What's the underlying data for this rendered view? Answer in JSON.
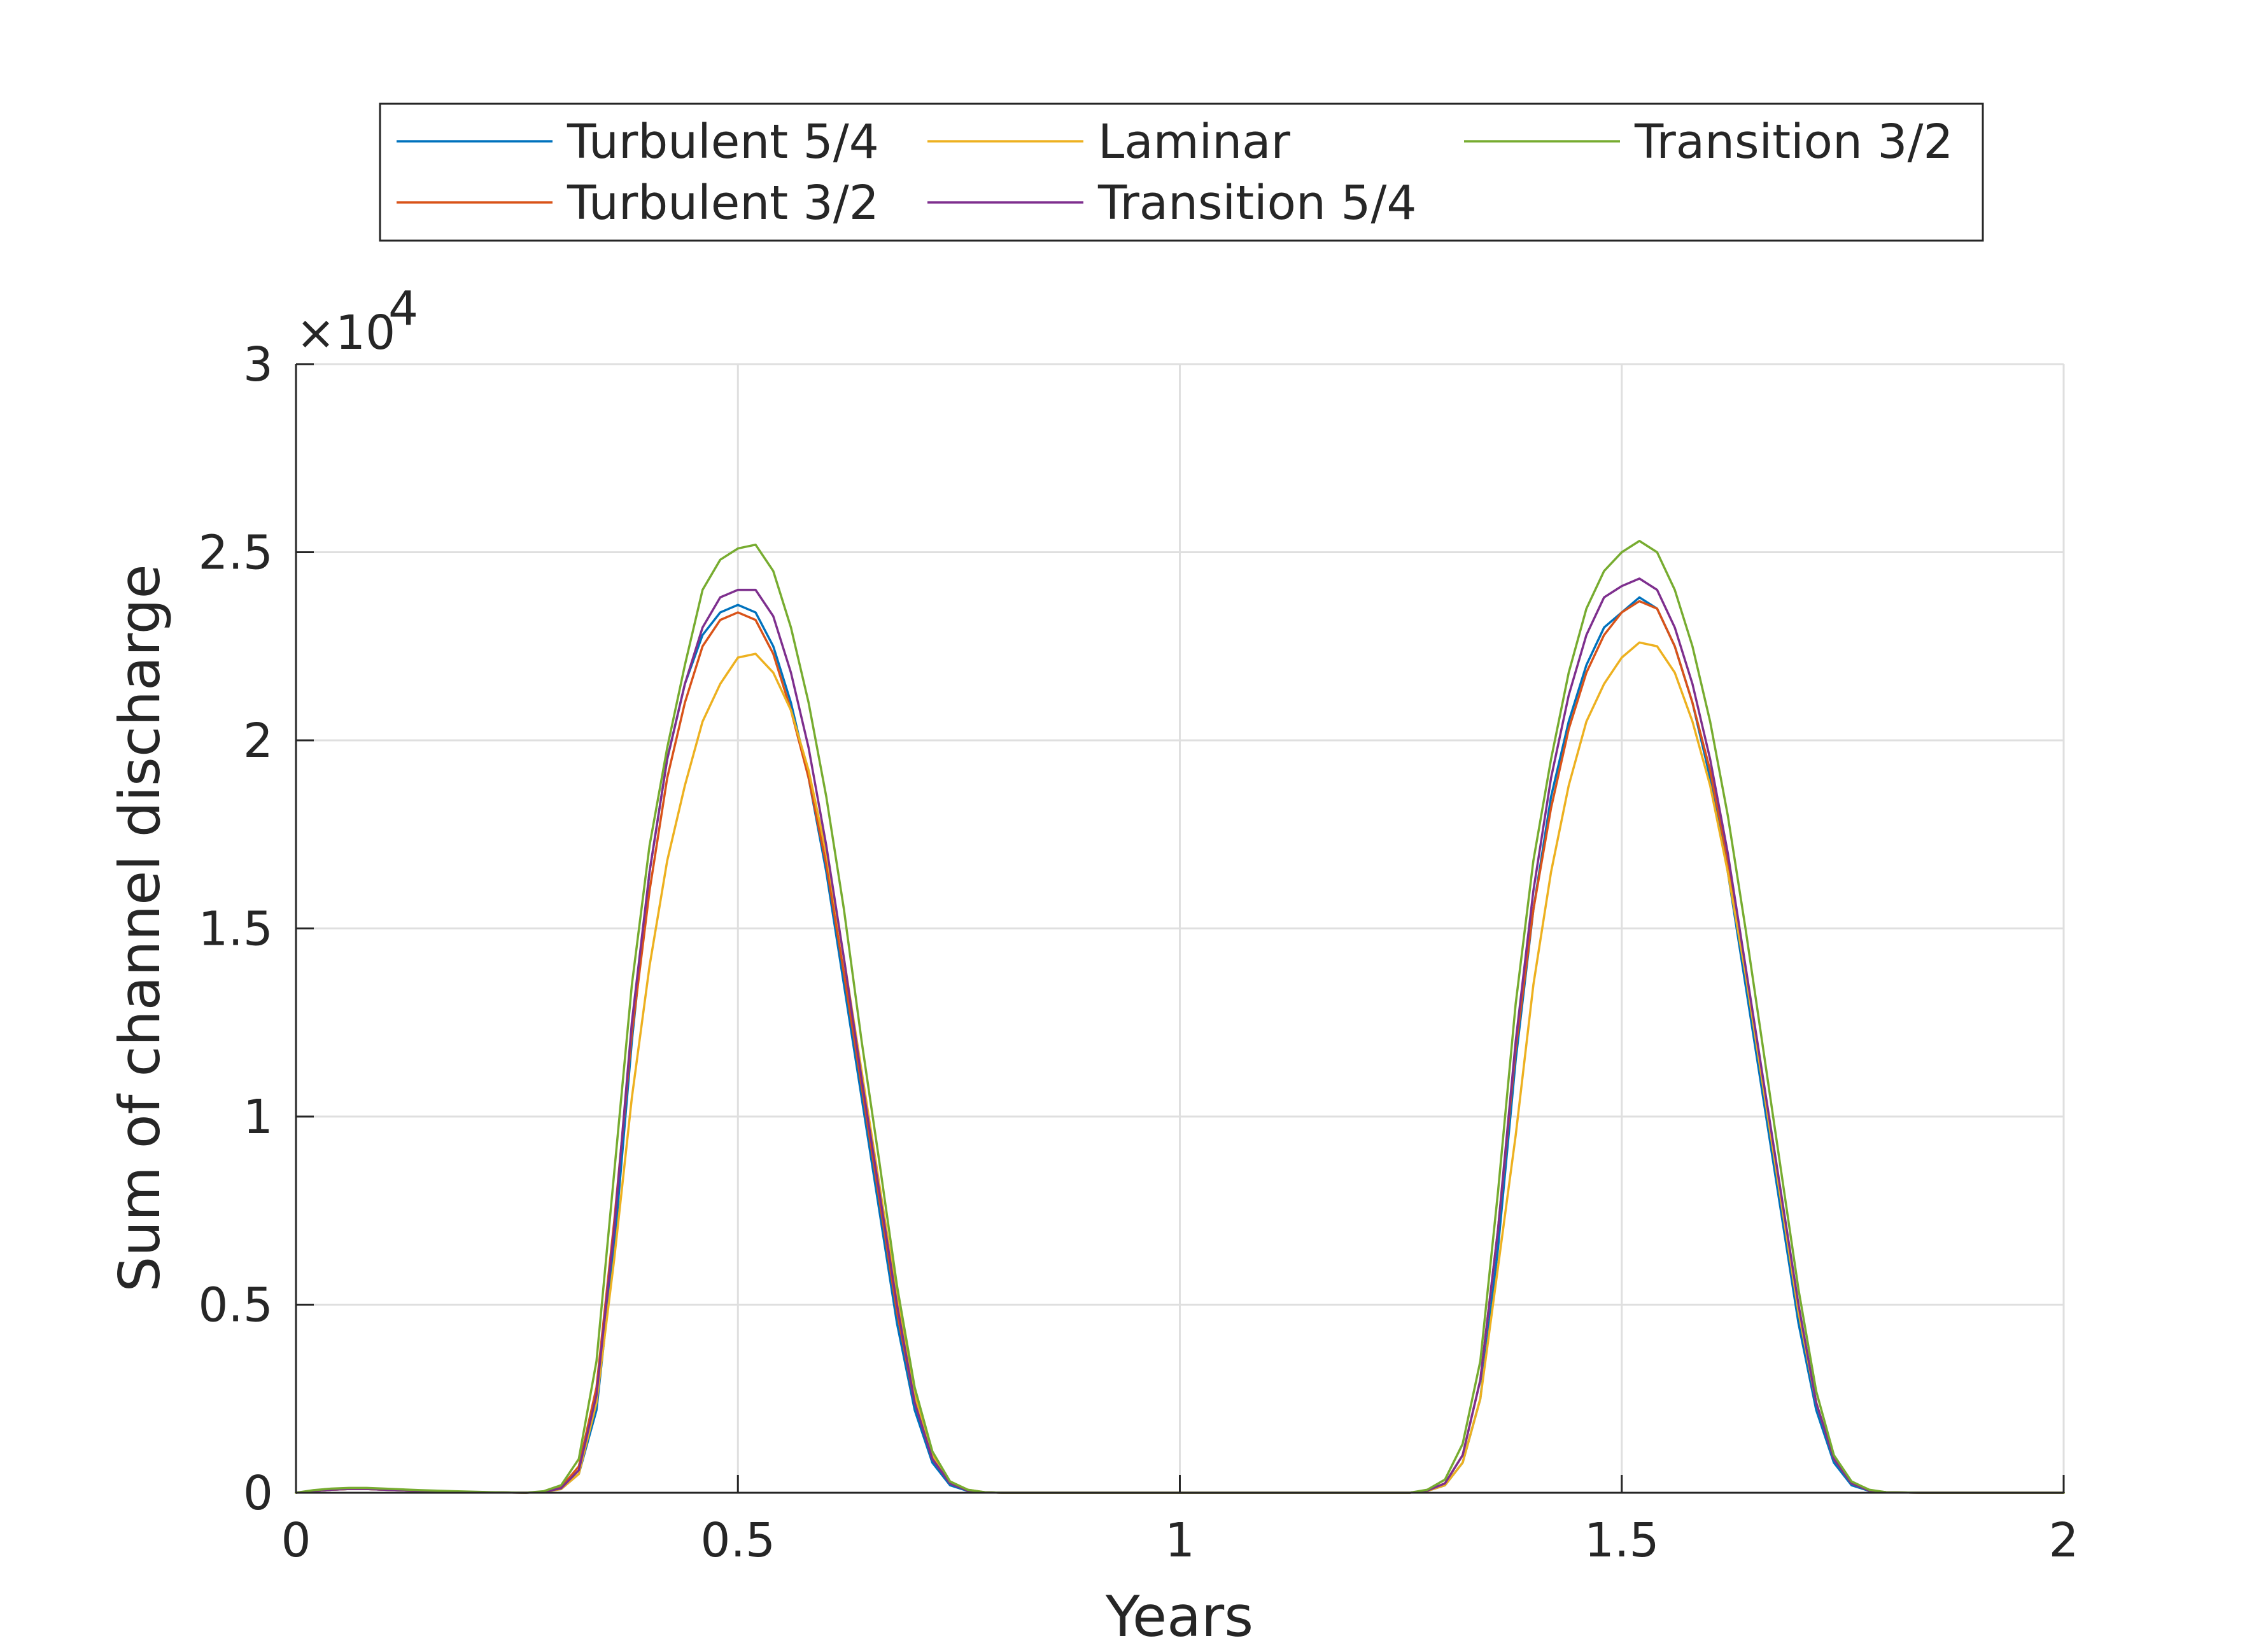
{
  "chart_data": {
    "type": "line",
    "xlabel": "Years",
    "ylabel": "Sum of channel discharge",
    "xlim": [
      0,
      2
    ],
    "ylim": [
      0,
      30000
    ],
    "y_exponent_label": "×10",
    "y_exponent_power": "4",
    "grid": true,
    "legend_position": "top-outside",
    "x_ticks": [
      0,
      0.5,
      1,
      1.5,
      2
    ],
    "x_tick_labels": [
      "0",
      "0.5",
      "1",
      "1.5",
      "2"
    ],
    "y_ticks": [
      0,
      5000,
      10000,
      15000,
      20000,
      25000,
      30000
    ],
    "y_tick_labels": [
      "0",
      "0.5",
      "1",
      "1.5",
      "2",
      "2.5",
      "3"
    ],
    "x": [
      0,
      0.02,
      0.04,
      0.06,
      0.08,
      0.1,
      0.14,
      0.18,
      0.22,
      0.26,
      0.28,
      0.3,
      0.32,
      0.34,
      0.36,
      0.38,
      0.4,
      0.42,
      0.44,
      0.46,
      0.48,
      0.5,
      0.52,
      0.54,
      0.56,
      0.58,
      0.6,
      0.62,
      0.64,
      0.66,
      0.68,
      0.7,
      0.72,
      0.74,
      0.76,
      0.78,
      0.8,
      0.84,
      0.9,
      1.0,
      1.1,
      1.2,
      1.26,
      1.28,
      1.3,
      1.32,
      1.34,
      1.36,
      1.38,
      1.4,
      1.42,
      1.44,
      1.46,
      1.48,
      1.5,
      1.52,
      1.54,
      1.56,
      1.58,
      1.6,
      1.62,
      1.64,
      1.66,
      1.68,
      1.7,
      1.72,
      1.74,
      1.76,
      1.78,
      1.8,
      1.84,
      1.9,
      2.0
    ],
    "series": [
      {
        "name": "Turbulent 5/4",
        "color": "#0072BD",
        "values": [
          0,
          50,
          80,
          100,
          100,
          80,
          50,
          30,
          10,
          0,
          20,
          100,
          500,
          2200,
          6500,
          12000,
          16500,
          19500,
          21500,
          22800,
          23400,
          23600,
          23400,
          22500,
          21000,
          19000,
          16500,
          13500,
          10500,
          7500,
          4500,
          2200,
          800,
          200,
          50,
          10,
          0,
          0,
          0,
          0,
          0,
          0,
          0,
          50,
          200,
          800,
          2500,
          6500,
          11500,
          15500,
          18500,
          20500,
          22000,
          23000,
          23400,
          23800,
          23500,
          22500,
          21000,
          19000,
          16500,
          13500,
          10500,
          7500,
          4500,
          2200,
          800,
          200,
          50,
          10,
          0,
          0,
          0
        ]
      },
      {
        "name": "Turbulent 3/2",
        "color": "#D95319",
        "values": [
          0,
          50,
          80,
          100,
          100,
          80,
          50,
          30,
          10,
          0,
          30,
          150,
          700,
          2800,
          7200,
          12200,
          16000,
          19000,
          21000,
          22500,
          23200,
          23400,
          23200,
          22300,
          20800,
          19000,
          16700,
          13800,
          10800,
          7800,
          4800,
          2400,
          900,
          250,
          60,
          10,
          0,
          0,
          0,
          0,
          0,
          0,
          0,
          60,
          250,
          1000,
          3000,
          7000,
          11800,
          15500,
          18200,
          20300,
          21800,
          22800,
          23400,
          23700,
          23500,
          22500,
          21000,
          19200,
          16800,
          13800,
          10800,
          7800,
          4800,
          2400,
          900,
          250,
          60,
          10,
          0,
          0,
          0
        ]
      },
      {
        "name": "Laminar",
        "color": "#EDB120",
        "values": [
          0,
          50,
          80,
          100,
          100,
          80,
          50,
          30,
          10,
          0,
          20,
          100,
          500,
          2400,
          6200,
          10500,
          14000,
          16800,
          18800,
          20500,
          21500,
          22200,
          22300,
          21800,
          20800,
          19200,
          17000,
          14200,
          11200,
          8200,
          5200,
          2600,
          1000,
          300,
          80,
          10,
          0,
          0,
          0,
          0,
          0,
          0,
          0,
          50,
          200,
          800,
          2500,
          6000,
          9500,
          13500,
          16500,
          18800,
          20500,
          21500,
          22200,
          22600,
          22500,
          21800,
          20500,
          18800,
          16500,
          13800,
          10800,
          7800,
          4800,
          2400,
          900,
          250,
          60,
          10,
          0,
          0,
          0
        ]
      },
      {
        "name": "Transition 5/4",
        "color": "#7E2F8E",
        "values": [
          0,
          50,
          80,
          100,
          100,
          80,
          50,
          30,
          10,
          0,
          20,
          120,
          600,
          2600,
          7000,
          12500,
          16500,
          19500,
          21500,
          23000,
          23800,
          24000,
          24000,
          23300,
          21800,
          19800,
          17200,
          14200,
          11000,
          8000,
          5000,
          2400,
          900,
          250,
          60,
          10,
          0,
          0,
          0,
          0,
          0,
          0,
          0,
          60,
          250,
          1000,
          3000,
          7000,
          12000,
          16000,
          19000,
          21200,
          22800,
          23800,
          24100,
          24300,
          24000,
          23000,
          21500,
          19500,
          17000,
          14000,
          11000,
          8000,
          5000,
          2400,
          900,
          250,
          60,
          10,
          0,
          0,
          0
        ]
      },
      {
        "name": "Transition 3/2",
        "color": "#77AC30",
        "values": [
          0,
          70,
          110,
          130,
          130,
          110,
          70,
          40,
          15,
          0,
          40,
          200,
          900,
          3500,
          8500,
          13500,
          17200,
          19800,
          22000,
          24000,
          24800,
          25100,
          25200,
          24500,
          23000,
          21000,
          18500,
          15500,
          12000,
          8800,
          5500,
          2800,
          1100,
          300,
          80,
          10,
          0,
          0,
          0,
          0,
          0,
          0,
          0,
          80,
          350,
          1300,
          3500,
          8000,
          13000,
          16800,
          19500,
          21800,
          23500,
          24500,
          25000,
          25300,
          25000,
          24000,
          22500,
          20500,
          18000,
          15000,
          11800,
          8600,
          5400,
          2700,
          1000,
          300,
          80,
          10,
          0,
          0,
          0
        ]
      }
    ]
  }
}
